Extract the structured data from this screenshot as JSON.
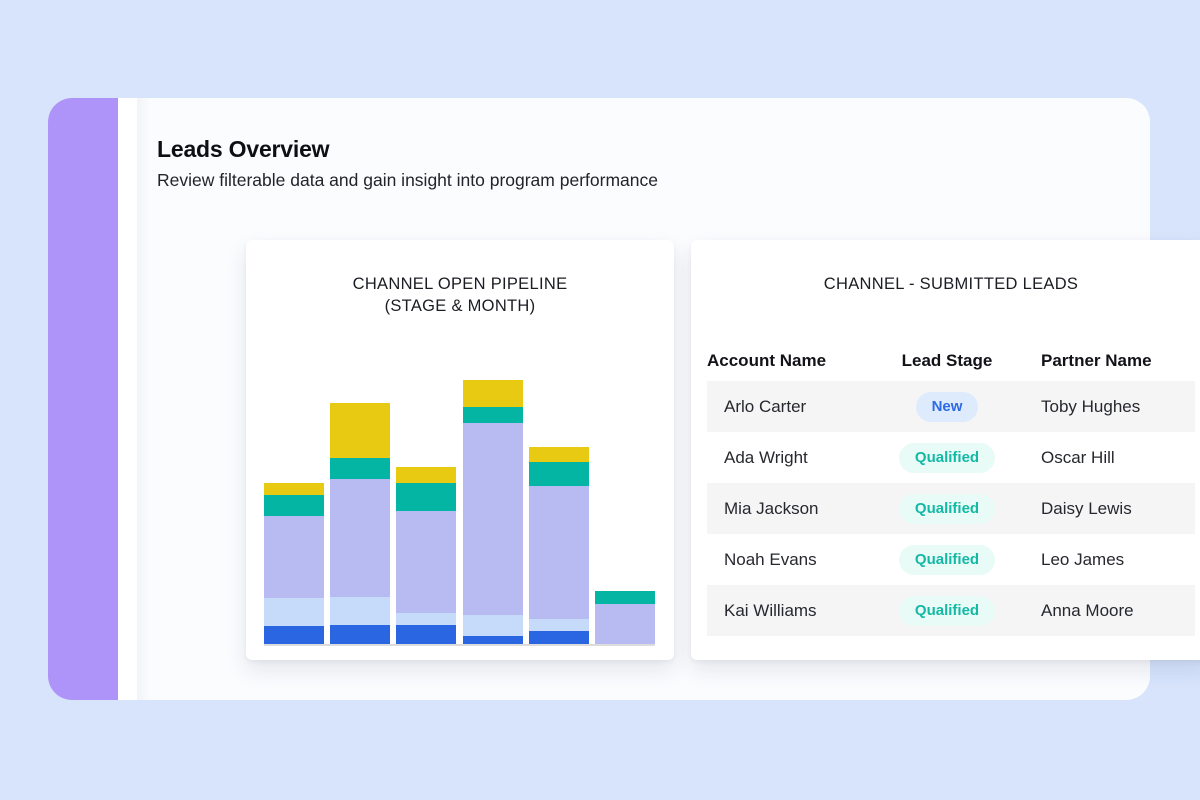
{
  "page": {
    "title": "Leads Overview",
    "subtitle": "Review filterable data and gain insight into program performance"
  },
  "colors": {
    "background": "#d7e4fc",
    "accent_bar": "#ae93f9",
    "panel": "#fbfcfe",
    "card": "#ffffff",
    "axis_line": "#dcdcde",
    "row_stripe": "#f5f5f6",
    "badge_new_bg": "#ddebfc",
    "badge_new_text": "#2d6ae4",
    "badge_qualified_bg": "#e9fbf6",
    "badge_qualified_text": "#14b9a6"
  },
  "chart_data": {
    "type": "bar",
    "stacked": true,
    "title": "CHANNEL OPEN PIPELINE (STAGE & MONTH)",
    "title_lines": [
      "CHANNEL OPEN PIPELINE",
      "(STAGE & MONTH)"
    ],
    "categories": [
      "",
      "",
      "",
      "",
      "",
      ""
    ],
    "series": [
      {
        "name": "stage-blue-bottom",
        "color": "#2b66e2",
        "values": [
          18,
          19,
          19,
          8,
          13,
          0
        ]
      },
      {
        "name": "stage-light-blue",
        "color": "#c5dbf9",
        "values": [
          28,
          28,
          12,
          21,
          12,
          0
        ]
      },
      {
        "name": "stage-lavender",
        "color": "#b7bbf1",
        "values": [
          82,
          118,
          102,
          192,
          133,
          40
        ]
      },
      {
        "name": "stage-teal",
        "color": "#04b5a3",
        "values": [
          21,
          21,
          28,
          16,
          24,
          13
        ]
      },
      {
        "name": "stage-yellow-top",
        "color": "#e9ca12",
        "values": [
          12,
          55,
          16,
          27,
          15,
          0
        ]
      }
    ],
    "value_units": "pixel-height estimate (axis unlabeled)",
    "ylim": [
      0,
      300
    ],
    "grid": false,
    "legend": false,
    "x_axis_labels_visible": false,
    "y_axis_labels_visible": false
  },
  "table": {
    "title": "CHANNEL - SUBMITTED LEADS",
    "columns": [
      "Account Name",
      "Lead Stage",
      "Partner Name"
    ],
    "rows": [
      {
        "account": "Arlo Carter",
        "stage": "New",
        "partner": "Toby Hughes"
      },
      {
        "account": "Ada Wright",
        "stage": "Qualified",
        "partner": "Oscar Hill"
      },
      {
        "account": "Mia Jackson",
        "stage": "Qualified",
        "partner": "Daisy Lewis"
      },
      {
        "account": "Noah Evans",
        "stage": "Qualified",
        "partner": "Leo James"
      },
      {
        "account": "Kai Williams",
        "stage": "Qualified",
        "partner": "Anna Moore"
      }
    ]
  }
}
